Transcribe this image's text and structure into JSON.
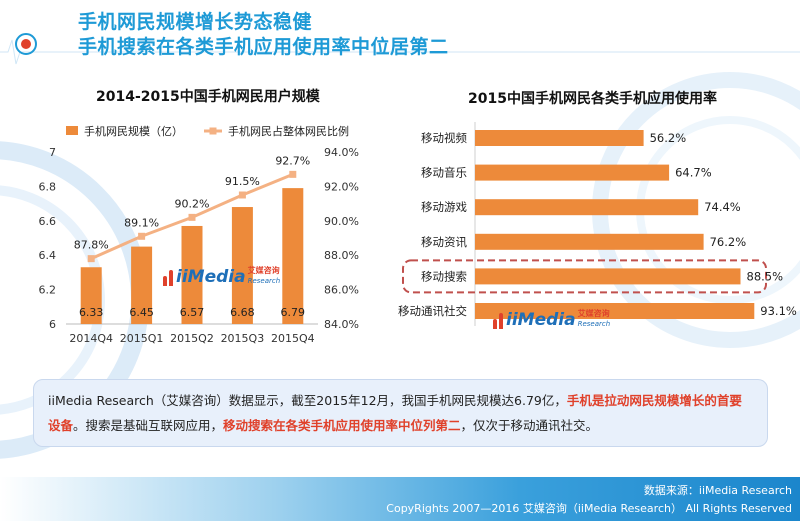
{
  "header": {
    "title_line1": "手机网民规模增长势态稳健",
    "title_line2": "手机搜索在各类手机应用使用率中位居第二"
  },
  "chart_data": [
    {
      "type": "bar",
      "title": "2014-2015中国手机网民用户规模",
      "categories": [
        "2014Q4",
        "2015Q1",
        "2015Q2",
        "2015Q3",
        "2015Q4"
      ],
      "series": [
        {
          "name": "手机网民规模（亿）",
          "type": "bar",
          "axis": "left",
          "values": [
            6.33,
            6.45,
            6.57,
            6.68,
            6.79
          ],
          "color": "#ed8a3a"
        },
        {
          "name": "手机网民占整体网民比例",
          "type": "line",
          "axis": "right",
          "values": [
            87.8,
            89.1,
            90.2,
            91.5,
            92.7
          ],
          "unit": "%",
          "color": "#f4b183"
        }
      ],
      "ylim": [
        6,
        7
      ],
      "y_ticks": [
        "6",
        "6.2",
        "6.4",
        "6.6",
        "6.8",
        "7"
      ],
      "y2lim": [
        84,
        94
      ],
      "y2_ticks": [
        "84.0%",
        "86.0%",
        "88.0%",
        "90.0%",
        "92.0%",
        "94.0%"
      ],
      "legend": "top-left"
    },
    {
      "type": "bar",
      "orientation": "horizontal",
      "title": "2015中国手机网民各类手机应用使用率",
      "categories": [
        "移动视频",
        "移动音乐",
        "移动游戏",
        "移动资讯",
        "移动搜索",
        "移动通讯社交"
      ],
      "values": [
        56.2,
        64.7,
        74.4,
        76.2,
        88.5,
        93.1
      ],
      "value_labels": [
        "56.2%",
        "64.7%",
        "74.4%",
        "76.2%",
        "88.5%",
        "93.1%"
      ],
      "xlim": [
        0,
        100
      ],
      "highlight": "移动搜索",
      "color": "#ed8a3a"
    }
  ],
  "watermark": {
    "brand": "iiMedia",
    "cn": "艾媒咨询",
    "en": "Research"
  },
  "summary": {
    "part1": "iiMedia Research（艾媒咨询）数据显示，截至2015年12月，我国手机网民规模达6.79亿，",
    "highlight1": "手机是拉动网民规模增长的首要设备",
    "part2": "。搜索是基础互联网应用，",
    "highlight2": "移动搜索在各类手机应用使用率中位列第二",
    "part3": "，仅次于移动通讯社交。"
  },
  "footer": {
    "source": "数据来源：iiMedia Research",
    "copyright": "CopyRights 2007—2016 艾媒咨询（iiMedia Research） All Rights Reserved"
  }
}
